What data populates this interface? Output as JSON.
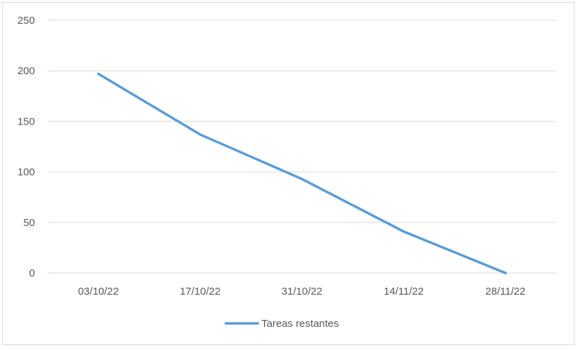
{
  "chart_data": {
    "type": "line",
    "categories": [
      "03/10/22",
      "17/10/22",
      "31/10/22",
      "14/11/22",
      "28/11/22"
    ],
    "series": [
      {
        "name": "Tareas restantes",
        "color": "#5b9bd5",
        "values": [
          197,
          137,
          93,
          41,
          0
        ]
      }
    ],
    "ylim": [
      0,
      250
    ],
    "yticks": [
      0,
      50,
      100,
      150,
      200,
      250
    ],
    "grid": true,
    "legend": "bottom",
    "title": "",
    "xlabel": "",
    "ylabel": ""
  }
}
